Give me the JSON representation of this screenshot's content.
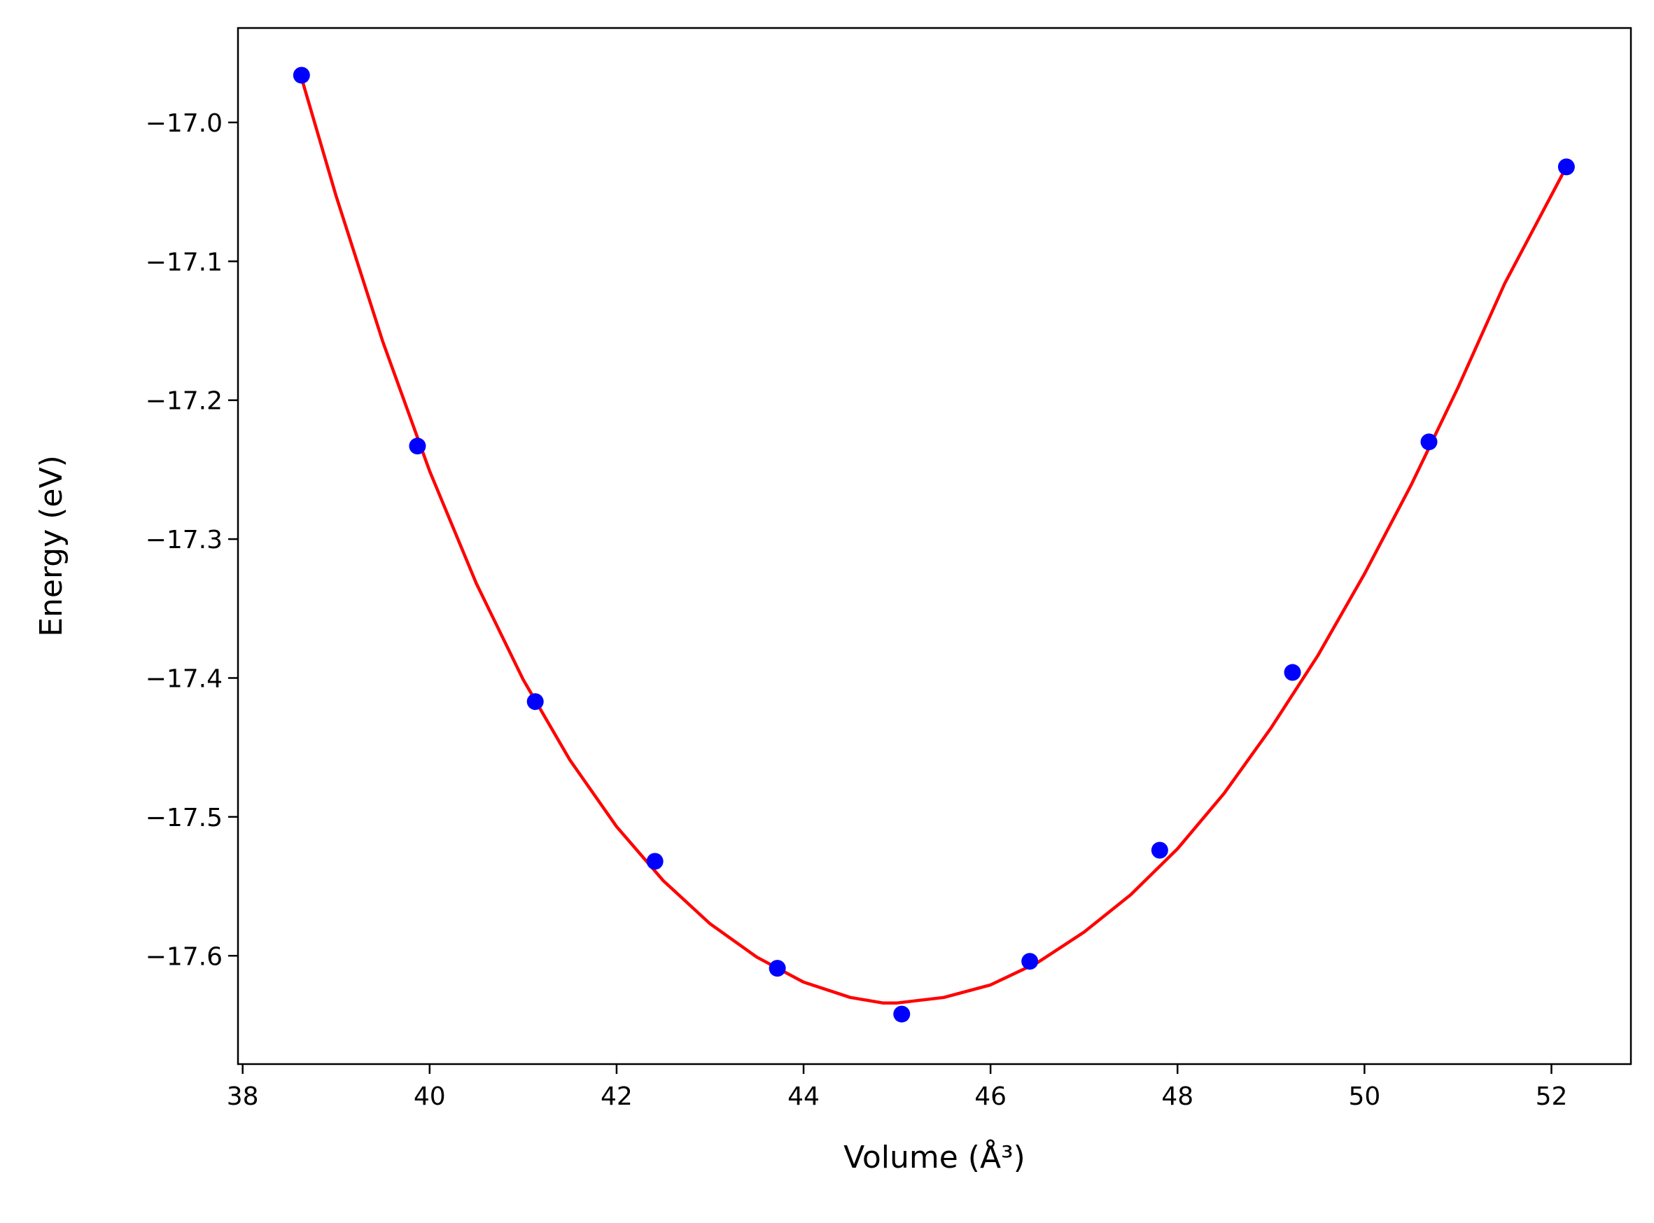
{
  "chart_data": {
    "type": "scatter",
    "title": "",
    "xlabel": "Volume (Å³)",
    "ylabel": "Energy (eV)",
    "xlim": [
      37.95,
      52.85
    ],
    "ylim": [
      -17.678,
      -16.932
    ],
    "xticks": [
      "38",
      "40",
      "42",
      "44",
      "46",
      "48",
      "50",
      "52"
    ],
    "yticks": [
      "−17.0",
      "−17.1",
      "−17.2",
      "−17.3",
      "−17.4",
      "−17.5",
      "−17.6"
    ],
    "grid": false,
    "legend": "none",
    "series": [
      {
        "kind": "points",
        "color": "#0000ff",
        "x": [
          38.63,
          39.87,
          41.13,
          42.41,
          43.72,
          45.05,
          46.42,
          47.81,
          49.23,
          50.69,
          52.16
        ],
        "y": [
          -16.966,
          -17.233,
          -17.417,
          -17.532,
          -17.609,
          -17.642,
          -17.604,
          -17.524,
          -17.396,
          -17.23,
          -17.032
        ]
      },
      {
        "kind": "fit-curve",
        "color": "#ff0000",
        "x": [
          38.63,
          39.0,
          39.5,
          40.0,
          40.5,
          41.0,
          41.5,
          42.0,
          42.5,
          43.0,
          43.5,
          44.0,
          44.5,
          44.85,
          45.0,
          45.5,
          46.0,
          46.5,
          47.0,
          47.5,
          48.0,
          48.5,
          49.0,
          49.5,
          50.0,
          50.5,
          51.0,
          51.5,
          52.16
        ],
        "y": [
          -16.968,
          -17.053,
          -17.158,
          -17.251,
          -17.332,
          -17.401,
          -17.459,
          -17.507,
          -17.546,
          -17.577,
          -17.601,
          -17.619,
          -17.63,
          -17.634,
          -17.634,
          -17.63,
          -17.621,
          -17.605,
          -17.583,
          -17.556,
          -17.523,
          -17.483,
          -17.436,
          -17.384,
          -17.325,
          -17.261,
          -17.191,
          -17.116,
          -17.032
        ]
      }
    ]
  }
}
